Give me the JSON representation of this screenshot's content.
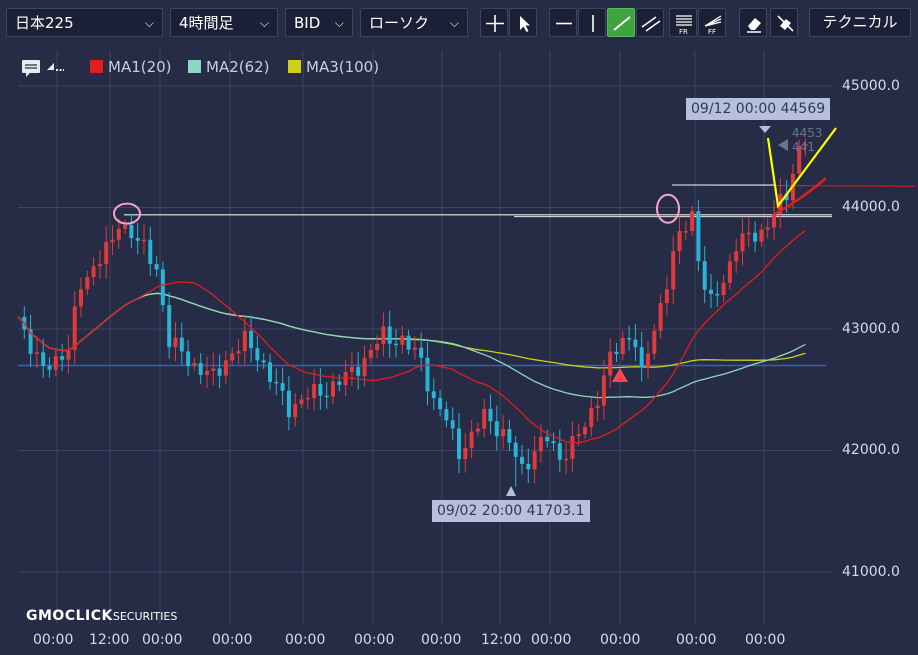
{
  "toolbar": {
    "symbol": "日本225",
    "timeframe": "4時間足",
    "price_type": "BID",
    "chart_type": "ローソク",
    "technical_label": "テクニカル",
    "tools": [
      "crosshair-icon",
      "cursor-icon",
      "horizontal-line-icon",
      "vertical-line-icon",
      "trend-line-icon",
      "parallel-line-icon",
      "fibonacci-retracement-icon",
      "fibonacci-fan-icon",
      "eraser-icon",
      "hide-drawings-icon"
    ]
  },
  "legend": {
    "items": [
      {
        "label": "MA1(20)",
        "color": "#e01e1e"
      },
      {
        "label": "MA2(62)",
        "color": "#8fd6c2"
      },
      {
        "label": "MA3(100)",
        "color": "#cdd11a"
      }
    ]
  },
  "chart_data": {
    "type": "candlestick",
    "y_ticks": [
      "45000.0",
      "44000.0",
      "43000.0",
      "42000.0",
      "41000.0"
    ],
    "y_values": [
      45000,
      44000,
      43000,
      42000,
      41000
    ],
    "x_ticks": [
      "00:00",
      "12:00",
      "00:00",
      "00:00",
      "00:00",
      "00:00",
      "00:00",
      "12:00",
      "00:00",
      "00:00",
      "00:00",
      "00:00"
    ],
    "ylim": [
      40850,
      45350
    ],
    "high_callout": {
      "label": "09/12 00:00 44569",
      "value": 44569
    },
    "low_callout": {
      "label": "09/02 20:00 41703.1",
      "value": 41703.1
    },
    "current_price_partial": [
      "4453",
      "441"
    ],
    "horizontal_levels": [
      43950,
      43940,
      43920,
      42700
    ],
    "series": [
      {
        "name": "MA1(20)",
        "color": "#e01e1e"
      },
      {
        "name": "MA2(62)",
        "color": "#8fd6c2"
      },
      {
        "name": "MA3(100)",
        "color": "#cdd11a"
      }
    ],
    "colors": {
      "up": "#e23a3a",
      "down": "#29b3d6"
    }
  },
  "brand": {
    "logo": "GMOCLICK",
    "suffix": "SECURITIES"
  }
}
